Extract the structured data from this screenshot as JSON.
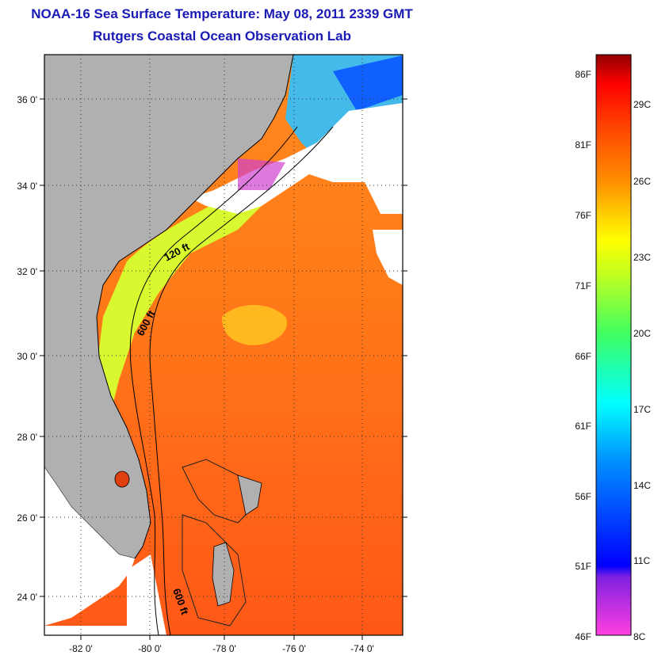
{
  "header": {
    "title": "NOAA-16 Sea Surface Temperature:  May 08, 2011 2339 GMT",
    "subtitle": "Rutgers Coastal Ocean Observation Lab"
  },
  "map": {
    "lat_labels": [
      "36 0'",
      "34 0'",
      "32 0'",
      "30 0'",
      "28 0'",
      "26 0'",
      "24 0'"
    ],
    "lon_labels": [
      "-82 0'",
      "-80 0'",
      "-78 0'",
      "-76 0'",
      "-74 0'"
    ],
    "contour_labels": [
      "120 ft",
      "600 ft",
      "600 ft"
    ],
    "land_color": "#b0b0b0",
    "cloud_color": "#ffffff"
  },
  "colorbar": {
    "fahrenheit_labels": [
      "86F",
      "81F",
      "76F",
      "71F",
      "66F",
      "61F",
      "56F",
      "51F",
      "46F"
    ],
    "celsius_labels": [
      "29C",
      "26C",
      "23C",
      "20C",
      "17C",
      "14C",
      "11C",
      "8C"
    ],
    "color_stops": [
      "#ff40e0",
      "#8020e0",
      "#0000ff",
      "#0090ff",
      "#00ffff",
      "#40ff60",
      "#c0ff20",
      "#ffff00",
      "#ff9000",
      "#ff4000",
      "#ff0000",
      "#900000"
    ]
  }
}
